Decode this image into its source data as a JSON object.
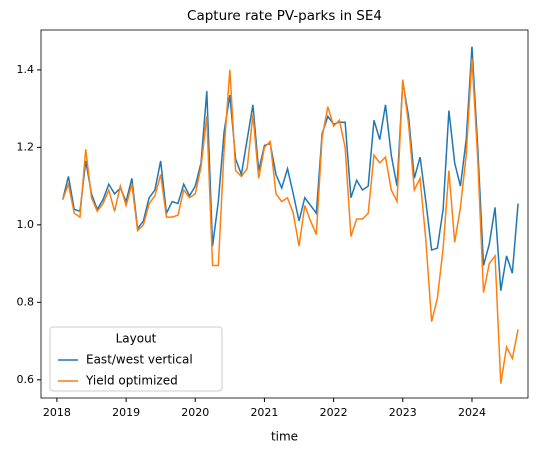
{
  "chart_data": {
    "type": "line",
    "title": "Capture rate PV-parks in SE4",
    "xlabel": "time",
    "x": [
      "2018-01",
      "2018-02",
      "2018-03",
      "2018-04",
      "2018-05",
      "2018-06",
      "2018-07",
      "2018-08",
      "2018-09",
      "2018-10",
      "2018-11",
      "2018-12",
      "2019-01",
      "2019-02",
      "2019-03",
      "2019-04",
      "2019-05",
      "2019-06",
      "2019-07",
      "2019-08",
      "2019-09",
      "2019-10",
      "2019-11",
      "2019-12",
      "2020-01",
      "2020-02",
      "2020-03",
      "2020-04",
      "2020-05",
      "2020-06",
      "2020-07",
      "2020-08",
      "2020-09",
      "2020-10",
      "2020-11",
      "2020-12",
      "2021-01",
      "2021-02",
      "2021-03",
      "2021-04",
      "2021-05",
      "2021-06",
      "2021-07",
      "2021-08",
      "2021-09",
      "2021-10",
      "2021-11",
      "2021-12",
      "2022-01",
      "2022-02",
      "2022-03",
      "2022-04",
      "2022-05",
      "2022-06",
      "2022-07",
      "2022-08",
      "2022-09",
      "2022-10",
      "2022-11",
      "2022-12",
      "2023-01",
      "2023-02",
      "2023-03",
      "2023-04",
      "2023-05",
      "2023-06",
      "2023-07",
      "2023-08",
      "2023-09",
      "2023-10",
      "2023-11",
      "2023-12",
      "2024-01",
      "2024-02",
      "2024-03",
      "2024-04",
      "2024-05",
      "2024-06",
      "2024-07",
      "2024-08"
    ],
    "series": [
      {
        "name": "East/west vertical",
        "color": "#1f77b4",
        "values": [
          1.065,
          1.125,
          1.04,
          1.035,
          1.165,
          1.08,
          1.04,
          1.065,
          1.105,
          1.08,
          1.095,
          1.06,
          1.12,
          0.99,
          1.01,
          1.07,
          1.09,
          1.165,
          1.03,
          1.06,
          1.055,
          1.105,
          1.075,
          1.1,
          1.16,
          1.345,
          0.945,
          1.06,
          1.24,
          1.335,
          1.17,
          1.13,
          1.22,
          1.31,
          1.14,
          1.205,
          1.21,
          1.13,
          1.095,
          1.145,
          1.08,
          1.01,
          1.07,
          1.05,
          1.03,
          1.235,
          1.28,
          1.26,
          1.265,
          1.265,
          1.07,
          1.115,
          1.09,
          1.1,
          1.27,
          1.22,
          1.31,
          1.18,
          1.1,
          1.37,
          1.28,
          1.12,
          1.175,
          1.06,
          0.935,
          0.94,
          1.04,
          1.295,
          1.16,
          1.1,
          1.22,
          1.46,
          1.2,
          0.895,
          0.95,
          1.045,
          0.83,
          0.92,
          0.875,
          1.055
        ]
      },
      {
        "name": "Yield optimized",
        "color": "#ff7f0e",
        "values": [
          1.065,
          1.105,
          1.03,
          1.02,
          1.195,
          1.07,
          1.035,
          1.055,
          1.09,
          1.035,
          1.1,
          1.05,
          1.105,
          0.985,
          1.0,
          1.055,
          1.075,
          1.13,
          1.02,
          1.02,
          1.025,
          1.09,
          1.07,
          1.08,
          1.15,
          1.28,
          0.895,
          0.895,
          1.195,
          1.4,
          1.14,
          1.125,
          1.145,
          1.285,
          1.12,
          1.2,
          1.215,
          1.08,
          1.06,
          1.07,
          1.03,
          0.945,
          1.05,
          1.01,
          0.975,
          1.225,
          1.305,
          1.255,
          1.27,
          1.2,
          0.97,
          1.015,
          1.015,
          1.03,
          1.18,
          1.16,
          1.175,
          1.09,
          1.06,
          1.375,
          1.26,
          1.09,
          1.12,
          0.96,
          0.75,
          0.81,
          0.94,
          1.14,
          0.955,
          1.045,
          1.18,
          1.43,
          1.17,
          0.825,
          0.9,
          0.92,
          0.59,
          0.685,
          0.655,
          0.73
        ]
      }
    ],
    "legend_title": "Layout",
    "legend": "lower left",
    "xlim": [
      2017.77,
      2024.81
    ],
    "xticks": [
      2018,
      2019,
      2020,
      2021,
      2022,
      2023,
      2024
    ],
    "ylim": [
      0.553,
      1.503
    ],
    "yticks": [
      0.6,
      0.8,
      {
        "value": 1,
        "label": "1.0"
      },
      1.2,
      1.4
    ],
    "grid": false
  }
}
